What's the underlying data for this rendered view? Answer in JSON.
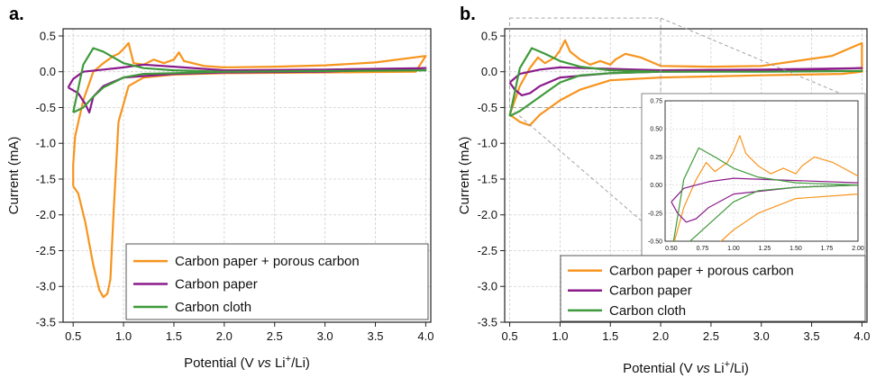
{
  "colors": {
    "orange": "#F7941D",
    "purple": "#8B1A8B",
    "green": "#3E9A3A",
    "grid": "#cfcfcf",
    "axis": "#222222"
  },
  "chart_data": [
    {
      "panel_label": "a.",
      "type": "line",
      "xlabel": "Potential (V vs Li+/Li)",
      "xlabel_parts": [
        "Potential (V ",
        "vs",
        " Li",
        "+",
        "/Li)"
      ],
      "ylabel": "Current (mA)",
      "xlim": [
        0.4,
        4.05
      ],
      "ylim": [
        -3.5,
        0.6
      ],
      "xticks": [
        0.5,
        1.0,
        1.5,
        2.0,
        2.5,
        3.0,
        3.5,
        4.0
      ],
      "xtick_labels": [
        "0.5",
        "1.0",
        "1.5",
        "2.0",
        "2.5",
        "3.0",
        "3.5",
        "4.0"
      ],
      "yticks": [
        0.5,
        0.0,
        -0.5,
        -1.0,
        -1.5,
        -2.0,
        -2.5,
        -3.0,
        -3.5
      ],
      "ytick_labels": [
        "0.5",
        "0.0",
        "-0.5",
        "-1.0",
        "-1.5",
        "-2.0",
        "-2.5",
        "-3.0",
        "-3.5"
      ],
      "grid": true,
      "legend_position": "bottom-right",
      "series": [
        {
          "name": "Carbon paper + porous carbon",
          "color_key": "orange",
          "x": [
            0.5,
            0.55,
            0.62,
            0.7,
            0.76,
            0.8,
            0.84,
            0.87,
            0.9,
            0.95,
            1.05,
            1.2,
            1.5,
            2.0,
            3.0,
            3.9,
            4.0,
            3.5,
            3.0,
            2.5,
            2.0,
            1.8,
            1.6,
            1.55,
            1.5,
            1.4,
            1.3,
            1.2,
            1.1,
            1.05,
            1.0,
            0.95,
            0.9,
            0.8,
            0.7,
            0.6,
            0.52,
            0.5,
            0.5
          ],
          "y": [
            -1.6,
            -1.7,
            -2.1,
            -2.7,
            -3.05,
            -3.15,
            -3.1,
            -2.9,
            -2.0,
            -0.7,
            -0.2,
            -0.08,
            -0.04,
            -0.02,
            -0.01,
            0.0,
            0.22,
            0.13,
            0.09,
            0.07,
            0.06,
            0.08,
            0.15,
            0.27,
            0.17,
            0.12,
            0.17,
            0.1,
            0.12,
            0.4,
            0.32,
            0.25,
            0.22,
            0.12,
            0.0,
            -0.4,
            -0.9,
            -1.3,
            -1.6
          ]
        },
        {
          "name": "Carbon paper",
          "color_key": "purple",
          "x": [
            0.45,
            0.55,
            0.62,
            0.66,
            0.7,
            0.8,
            1.0,
            1.5,
            2.0,
            3.0,
            4.0,
            3.5,
            3.0,
            2.0,
            1.5,
            1.2,
            1.0,
            0.8,
            0.6,
            0.5,
            0.45
          ],
          "y": [
            -0.22,
            -0.3,
            -0.45,
            -0.57,
            -0.35,
            -0.2,
            -0.08,
            -0.03,
            -0.01,
            0.0,
            0.05,
            0.04,
            0.03,
            0.02,
            0.07,
            0.1,
            0.06,
            0.03,
            0.0,
            -0.1,
            -0.22
          ]
        },
        {
          "name": "Carbon cloth",
          "color_key": "green",
          "x": [
            0.5,
            0.6,
            0.7,
            0.8,
            1.0,
            1.2,
            1.5,
            2.0,
            3.0,
            4.0,
            3.0,
            2.0,
            1.5,
            1.2,
            1.0,
            0.9,
            0.8,
            0.7,
            0.6,
            0.5
          ],
          "y": [
            -0.57,
            -0.5,
            -0.35,
            -0.22,
            -0.08,
            -0.03,
            -0.02,
            0.0,
            0.01,
            0.02,
            0.01,
            0.0,
            0.02,
            0.05,
            0.12,
            0.2,
            0.28,
            0.33,
            0.1,
            -0.57
          ]
        }
      ]
    },
    {
      "panel_label": "b.",
      "type": "line",
      "xlabel": "Potential (V vs Li+/Li)",
      "xlabel_parts": [
        "Potential (V ",
        "vs",
        " Li",
        "+",
        "/Li)"
      ],
      "ylabel": "Current (mA)",
      "xlim": [
        0.45,
        4.05
      ],
      "ylim": [
        -3.5,
        0.6
      ],
      "xticks": [
        0.5,
        1.0,
        1.5,
        2.0,
        2.5,
        3.0,
        3.5,
        4.0
      ],
      "xtick_labels": [
        "0.5",
        "1.0",
        "1.5",
        "2.0",
        "2.5",
        "3.0",
        "3.5",
        "4.0"
      ],
      "yticks": [
        0.5,
        0.0,
        -0.5,
        -1.0,
        -1.5,
        -2.0,
        -2.5,
        -3.0,
        -3.5
      ],
      "ytick_labels": [
        "0.5",
        "0.0",
        "-0.5",
        "-1.0",
        "-1.5",
        "-2.0",
        "-2.5",
        "-3.0",
        "-3.5"
      ],
      "grid": true,
      "legend_position": "bottom-right",
      "zoom_box": {
        "x": [
          0.5,
          2.0
        ],
        "y": [
          -0.5,
          0.75
        ]
      },
      "series": [
        {
          "name": "Carbon paper + porous carbon",
          "color_key": "orange",
          "x": [
            0.5,
            0.6,
            0.7,
            0.8,
            0.9,
            1.0,
            1.2,
            1.5,
            2.0,
            3.0,
            3.8,
            4.0,
            4.0,
            3.7,
            3.0,
            2.5,
            2.0,
            1.8,
            1.65,
            1.55,
            1.5,
            1.4,
            1.3,
            1.2,
            1.1,
            1.05,
            1.0,
            0.95,
            0.85,
            0.78,
            0.7,
            0.6,
            0.5
          ],
          "y": [
            -0.6,
            -0.7,
            -0.75,
            -0.6,
            -0.5,
            -0.4,
            -0.25,
            -0.12,
            -0.08,
            -0.05,
            -0.03,
            0.0,
            0.4,
            0.22,
            0.08,
            0.07,
            0.08,
            0.2,
            0.25,
            0.17,
            0.1,
            0.15,
            0.1,
            0.17,
            0.28,
            0.44,
            0.3,
            0.2,
            0.12,
            0.2,
            0.05,
            -0.2,
            -0.6
          ]
        },
        {
          "name": "Carbon paper",
          "color_key": "purple",
          "x": [
            0.5,
            0.55,
            0.62,
            0.7,
            0.8,
            1.0,
            1.5,
            2.0,
            3.0,
            4.0,
            3.0,
            2.0,
            1.5,
            1.0,
            0.8,
            0.6,
            0.5
          ],
          "y": [
            -0.15,
            -0.25,
            -0.33,
            -0.3,
            -0.2,
            -0.08,
            -0.02,
            0.0,
            0.01,
            0.05,
            0.03,
            0.02,
            0.04,
            0.06,
            0.03,
            -0.03,
            -0.15
          ]
        },
        {
          "name": "Carbon cloth",
          "color_key": "green",
          "x": [
            0.5,
            0.6,
            0.7,
            0.8,
            1.0,
            1.2,
            1.5,
            2.0,
            3.0,
            4.0,
            3.0,
            2.0,
            1.5,
            1.2,
            1.0,
            0.85,
            0.72,
            0.6,
            0.5
          ],
          "y": [
            -0.62,
            -0.55,
            -0.45,
            -0.35,
            -0.15,
            -0.05,
            -0.02,
            0.0,
            0.0,
            0.01,
            0.0,
            0.0,
            0.02,
            0.07,
            0.15,
            0.25,
            0.33,
            0.05,
            -0.62
          ]
        }
      ],
      "inset": {
        "xlim": [
          0.45,
          2.0
        ],
        "ylim": [
          -0.5,
          0.75
        ],
        "xticks": [
          0.5,
          0.75,
          1.0,
          1.25,
          1.5,
          1.75,
          2.0
        ],
        "xtick_labels": [
          "0.50",
          "0.75",
          "1.00",
          "1.25",
          "1.50",
          "1.75",
          "2.00"
        ],
        "yticks": [
          0.75,
          0.5,
          0.25,
          0.0,
          -0.25,
          -0.5
        ],
        "ytick_labels": [
          "0.75",
          "0.50",
          "0.25",
          "0.00",
          "-0.25",
          "-0.50"
        ]
      }
    }
  ]
}
